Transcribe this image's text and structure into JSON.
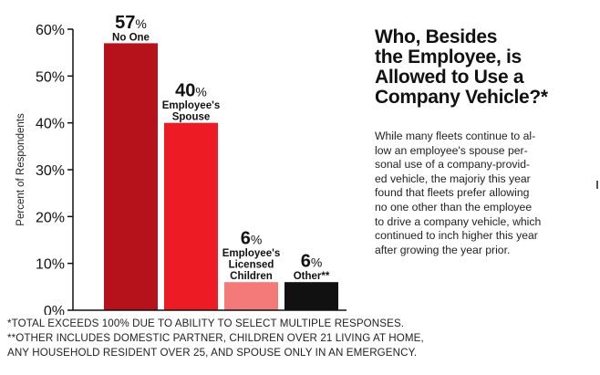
{
  "chart_data": {
    "type": "bar",
    "title_lines": [
      "Who, Besides",
      "the Employee, is",
      "Allowed to Use a",
      "Company Vehicle?*"
    ],
    "ylabel": "Percent of Respondents",
    "xlabel": "",
    "ylim": [
      0,
      60
    ],
    "yticks": [
      "0%",
      "10%",
      "20%",
      "30%",
      "40%",
      "50%",
      "60%"
    ],
    "ytick_values": [
      0,
      10,
      20,
      30,
      40,
      50,
      60
    ],
    "categories": [
      "No One",
      "Employee's Spouse",
      "Employee's Licensed Children",
      "Other**"
    ],
    "category_label_lines": [
      [
        "No One"
      ],
      [
        "Employee's",
        "Spouse"
      ],
      [
        "Employee's",
        "Licensed",
        "Children"
      ],
      [
        "Other**"
      ]
    ],
    "values": [
      57,
      40,
      6,
      6
    ],
    "value_labels": [
      "57",
      "40",
      "6",
      "6"
    ],
    "value_suffix": "%",
    "colors": [
      "#b5121b",
      "#ed1c24",
      "#f47a7a",
      "#111111"
    ],
    "grid": false,
    "legend": "none"
  },
  "description_lines": [
    "While many fleets continue to al-",
    "low an employee's spouse per-",
    "sonal use of a company-provid-",
    "ed vehicle, the majoriy this year",
    "found that fleets prefer allowing",
    "no one other than the employee",
    "to drive a company vehicle, which",
    "continued to inch higher this year",
    "after growing the year prior."
  ],
  "footnotes": [
    "*TOTAL EXCEEDS 100% DUE TO ABILITY TO SELECT MULTIPLE RESPONSES.",
    "**OTHER INCLUDES DOMESTIC PARTNER, CHILDREN OVER 21 LIVING AT HOME,",
    "ANY HOUSEHOLD RESIDENT OVER 25, AND SPOUSE ONLY IN AN EMERGENCY."
  ]
}
